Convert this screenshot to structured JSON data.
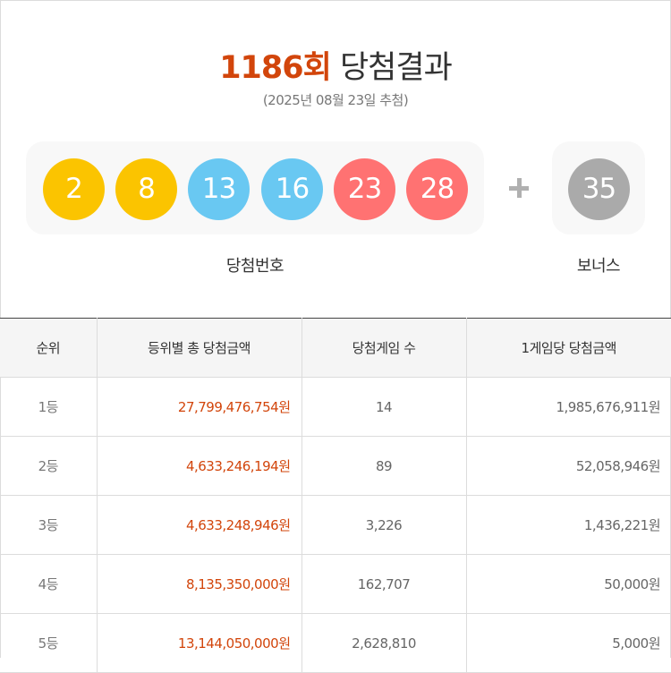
{
  "header": {
    "round": "1186회",
    "title": "당첨결과",
    "draw_date": "(2025년 08월 23일 추첨)"
  },
  "numbers": {
    "winning": [
      {
        "value": "2",
        "color": "#fbc400"
      },
      {
        "value": "8",
        "color": "#fbc400"
      },
      {
        "value": "13",
        "color": "#69c8f2"
      },
      {
        "value": "16",
        "color": "#69c8f2"
      },
      {
        "value": "23",
        "color": "#ff7272"
      },
      {
        "value": "28",
        "color": "#ff7272"
      }
    ],
    "bonus": {
      "value": "35",
      "color": "#aaaaaa"
    },
    "winning_label": "당첨번호",
    "bonus_label": "보너스"
  },
  "table": {
    "headers": [
      "순위",
      "등위별 총 당첨금액",
      "당첨게임 수",
      "1게임당 당첨금액"
    ],
    "rows": [
      {
        "rank": "1등",
        "total": "27,799,476,754원",
        "count": "14",
        "per_game": "1,985,676,911원"
      },
      {
        "rank": "2등",
        "total": "4,633,246,194원",
        "count": "89",
        "per_game": "52,058,946원"
      },
      {
        "rank": "3등",
        "total": "4,633,248,946원",
        "count": "3,226",
        "per_game": "1,436,221원"
      },
      {
        "rank": "4등",
        "total": "8,135,350,000원",
        "count": "162,707",
        "per_game": "50,000원"
      },
      {
        "rank": "5등",
        "total": "13,144,050,000원",
        "count": "2,628,810",
        "per_game": "5,000원"
      }
    ]
  }
}
